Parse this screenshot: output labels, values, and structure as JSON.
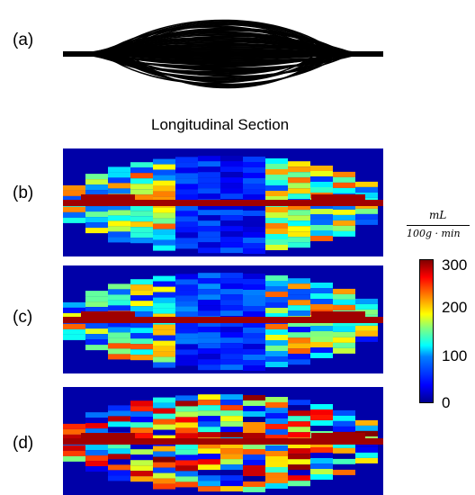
{
  "labels": {
    "a": "(a)",
    "b": "(b)",
    "c": "(c)",
    "d": "(d)"
  },
  "title": "Longitudinal Section",
  "colorbar": {
    "unit_numerator": "mL",
    "unit_denominator": "100g · min",
    "ticks": [
      "300",
      "200",
      "100",
      "0"
    ],
    "colormap": "jet",
    "range": [
      0,
      300
    ]
  },
  "colors": {
    "background_field": "#0000a8",
    "dark_red": "#a00000",
    "network": "#000000"
  }
}
